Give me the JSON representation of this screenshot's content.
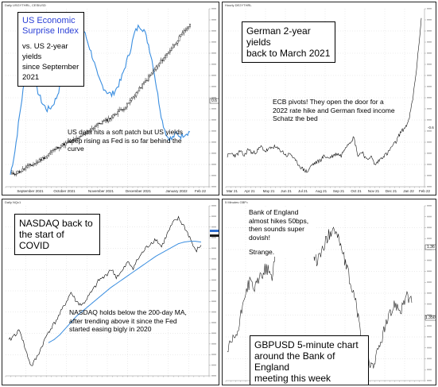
{
  "chart_data": [
    {
      "type": "line",
      "header": "Daily USGYTHRL, CESIUSD",
      "title_box": {
        "line1": "US Economic",
        "line2": "Surprise Index",
        "line3": "vs. US 2-year yields",
        "line4": "since September",
        "line5": "2021"
      },
      "annotation": "US data hits a soft patch but US yields keep rising as Fed is so far behind the curve",
      "x_ticks": [
        "September 2021",
        "October 2021",
        "November 2021",
        "December 2021",
        "January 2022",
        "Feb 22"
      ],
      "highlight_labels": [
        "0.6"
      ],
      "colors": {
        "surprise": "#3a8ee0",
        "price": "#000000"
      },
      "series": [
        {
          "values": [
            -4,
            12,
            36,
            58,
            66,
            60,
            52,
            44,
            40,
            42,
            48,
            58,
            70,
            82,
            92,
            98,
            93,
            84,
            74,
            62,
            56,
            52,
            50,
            54,
            60,
            70,
            80,
            92,
            97,
            94,
            84,
            70,
            50,
            32,
            22,
            20,
            24,
            22,
            24,
            25
          ]
        },
        {
          "values": [
            0.2,
            0.21,
            0.22,
            0.24,
            0.26,
            0.27,
            0.29,
            0.31,
            0.33,
            0.36,
            0.38,
            0.4,
            0.41,
            0.42,
            0.44,
            0.45,
            0.47,
            0.5,
            0.52,
            0.54,
            0.56,
            0.57,
            0.59,
            0.62,
            0.64,
            0.66,
            0.7,
            0.74,
            0.78,
            0.82,
            0.86,
            0.9,
            0.94,
            0.98,
            1.02,
            1.06,
            1.1,
            1.14,
            1.18,
            1.22
          ]
        }
      ]
    },
    {
      "type": "line",
      "header": "Hourly DE2YTHRL",
      "title_box": {
        "line1": "German 2-year yields",
        "line2": "back to March 2021"
      },
      "annotation": "ECB pivots! They open the door for a 2022 rate hike and German fixed income Schatz the bed",
      "x_ticks": [
        "Mar 21",
        "Apr 21",
        "May 21",
        "Jun 21",
        "Jul 21",
        "Aug 21",
        "Sep 21",
        "Oct 21",
        "Nov 21",
        "Dec 21",
        "Jan 22",
        "Feb 22"
      ],
      "y_ticks_right": [
        "-0.6"
      ],
      "series": [
        {
          "values": [
            -0.7,
            -0.69,
            -0.7,
            -0.68,
            -0.7,
            -0.67,
            -0.69,
            -0.68,
            -0.66,
            -0.68,
            -0.67,
            -0.66,
            -0.67,
            -0.68,
            -0.7,
            -0.69,
            -0.72,
            -0.74,
            -0.76,
            -0.77,
            -0.74,
            -0.73,
            -0.72,
            -0.7,
            -0.71,
            -0.7,
            -0.69,
            -0.7,
            -0.66,
            -0.64,
            -0.62,
            -0.7,
            -0.68,
            -0.72,
            -0.7,
            -0.74,
            -0.72,
            -0.7,
            -0.69,
            -0.66,
            -0.64,
            -0.6,
            -0.58,
            -0.55,
            -0.45,
            -0.3,
            -0.1
          ]
        }
      ]
    },
    {
      "type": "line",
      "header": "Daily NQc1",
      "title_box": {
        "line1": "NASDAQ back to",
        "line2": "the start of COVID"
      },
      "annotation": "NASDAQ holds below the 200-day MA, after trending above it since the Fed started easing bigly in 2020",
      "colors": {
        "price": "#000000",
        "ma": "#3a8ee0"
      },
      "series": [
        {
          "values": [
            8800,
            9200,
            9500,
            8200,
            7200,
            7800,
            8600,
            9400,
            9900,
            10500,
            11200,
            11900,
            11300,
            11100,
            11600,
            12100,
            12700,
            12900,
            13400,
            12900,
            13200,
            13800,
            13500,
            14100,
            14600,
            15000,
            15300,
            14800,
            15600,
            16300,
            16600,
            16100,
            15400,
            14500,
            14900
          ]
        },
        {
          "values": [
            null,
            null,
            null,
            null,
            null,
            null,
            null,
            8700,
            8900,
            9200,
            9600,
            10000,
            10400,
            10700,
            11000,
            11300,
            11600,
            11900,
            12200,
            12450,
            12700,
            12950,
            13200,
            13450,
            13700,
            13950,
            14200,
            14400,
            14600,
            14800,
            15000,
            15100,
            15150,
            15150,
            15100
          ]
        }
      ]
    },
    {
      "type": "line",
      "header": "5 Minutes GBP=",
      "title_box": {
        "line1": "GBPUSD 5-minute chart",
        "line2": "around the Bank of England",
        "line3": "meeting this week"
      },
      "annotation": "Bank of England almost hikes 50bps, then sounds super dovish!",
      "annotation2": "Strange.",
      "y_ticks_right": [
        "1.36",
        "1.350"
      ],
      "series": [
        {
          "values": [
            1.343,
            1.3445,
            1.346,
            1.351,
            1.353,
            1.352,
            1.354,
            1.355,
            1.3535,
            1.36,
            1.359,
            1.358,
            1.3575,
            1.359,
            1.36,
            1.357,
            1.356,
            1.3575,
            1.3595,
            1.361,
            1.359,
            1.356,
            1.353,
            1.35,
            1.345,
            1.342,
            1.341,
            1.343,
            1.346,
            1.348,
            1.35,
            1.349,
            1.351,
            1.35
          ]
        }
      ]
    }
  ]
}
